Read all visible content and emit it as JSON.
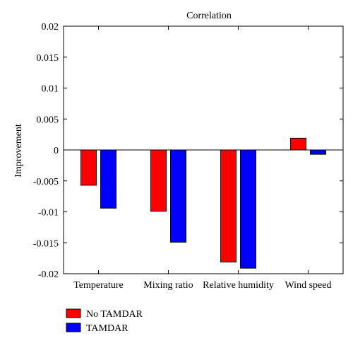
{
  "chart_data": {
    "type": "bar",
    "title": "Correlation",
    "xlabel": "",
    "ylabel": "Improvement",
    "categories": [
      "Temperature",
      "Mixing ratio",
      "Relative humidity",
      "Wind speed"
    ],
    "series": [
      {
        "name": "No TAMDAR",
        "color": "#ff0000",
        "values": [
          -0.0057,
          -0.0099,
          -0.0181,
          0.0019
        ]
      },
      {
        "name": "TAMDAR",
        "color": "#0000ff",
        "values": [
          -0.0094,
          -0.0149,
          -0.0191,
          -0.0007
        ]
      }
    ],
    "ylim": [
      -0.02,
      0.02
    ],
    "yticks": [
      "0.02",
      "0.015",
      "0.01",
      "0.005",
      "0",
      "-0.005",
      "-0.01",
      "-0.015",
      "-0.02"
    ],
    "ytick_values": [
      0.02,
      0.015,
      0.01,
      0.005,
      0,
      -0.005,
      -0.01,
      -0.015,
      -0.02
    ],
    "grid": false,
    "legend_position": "bottom-left"
  }
}
